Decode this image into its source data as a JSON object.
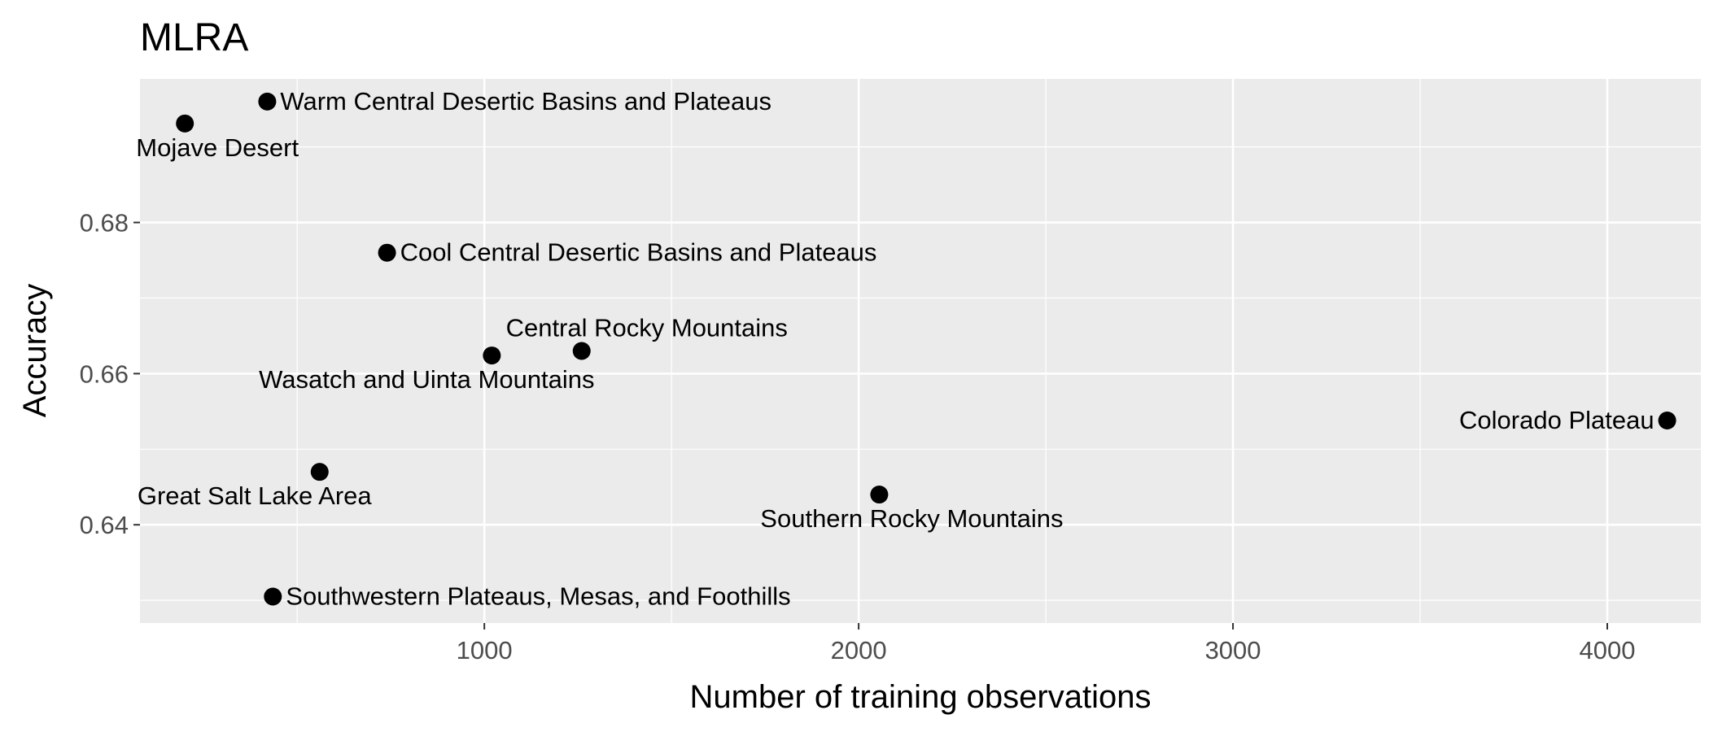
{
  "chart_data": {
    "type": "scatter",
    "title": "MLRA",
    "xlabel": "Number of training observations",
    "ylabel": "Accuracy",
    "xlim": [
      80,
      4250
    ],
    "ylim": [
      0.627,
      0.699
    ],
    "x_ticks": [
      1000,
      2000,
      3000,
      4000
    ],
    "x_tick_labels": [
      "1000",
      "2000",
      "3000",
      "4000"
    ],
    "y_ticks": [
      0.64,
      0.66,
      0.68
    ],
    "y_tick_labels": [
      "0.64",
      "0.66",
      "0.68"
    ],
    "grid": true,
    "points": [
      {
        "label": "Warm Central Desertic Basins and Plateaus",
        "x": 420,
        "y": 0.696,
        "label_pos": "right"
      },
      {
        "label": "Mojave Desert",
        "x": 200,
        "y": 0.6931,
        "label_pos": "below"
      },
      {
        "label": "Cool Central Desertic Basins and Plateaus",
        "x": 740,
        "y": 0.676,
        "label_pos": "right"
      },
      {
        "label": "Central Rocky Mountains",
        "x": 1260,
        "y": 0.663,
        "label_pos": "above"
      },
      {
        "label": "Wasatch and Uinta Mountains",
        "x": 1020,
        "y": 0.6624,
        "label_pos": "below-left"
      },
      {
        "label": "Colorado Plateau",
        "x": 4160,
        "y": 0.6538,
        "label_pos": "left"
      },
      {
        "label": "Great Salt Lake Area",
        "x": 560,
        "y": 0.647,
        "label_pos": "below-left"
      },
      {
        "label": "Southern Rocky Mountains",
        "x": 2055,
        "y": 0.644,
        "label_pos": "below"
      },
      {
        "label": "Southwestern Plateaus, Mesas, and Foothills",
        "x": 435,
        "y": 0.6305,
        "label_pos": "right"
      }
    ]
  }
}
